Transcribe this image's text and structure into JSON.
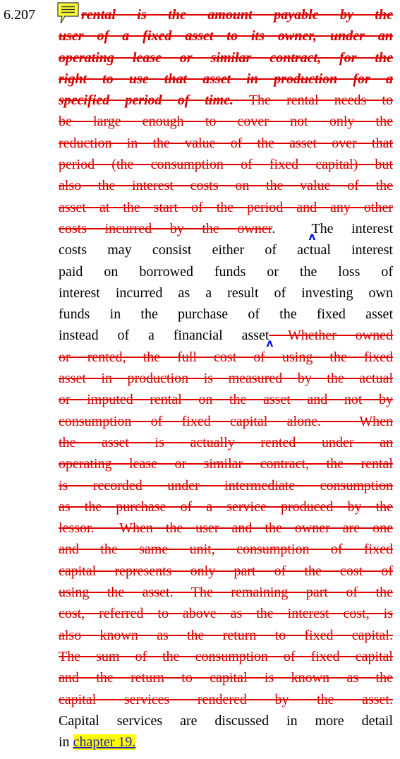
{
  "paragraph": {
    "number": "6.207",
    "lines": [
      {
        "segments": [
          {
            "text": "rental is the amount payable by the",
            "style": "del-bi"
          }
        ]
      },
      {
        "segments": [
          {
            "text": "user of a fixed asset to its owner, under an",
            "style": "del-bi"
          }
        ]
      },
      {
        "segments": [
          {
            "text": "operating lease or similar contract, for the",
            "style": "del-bi"
          }
        ]
      },
      {
        "segments": [
          {
            "text": "right to use that asset in production for a",
            "style": "del-bi"
          }
        ]
      },
      {
        "segments": [
          {
            "text": "specified period of time.",
            "style": "del-bi"
          },
          {
            "text": " The rental needs to",
            "style": "del"
          }
        ]
      },
      {
        "segments": [
          {
            "text": "be large enough to cover not only the",
            "style": "del"
          }
        ]
      },
      {
        "segments": [
          {
            "text": "reduction in the value of the asset over that",
            "style": "del"
          }
        ]
      },
      {
        "segments": [
          {
            "text": "period (the consumption of fixed capital) but",
            "style": "del"
          }
        ]
      },
      {
        "segments": [
          {
            "text": "also the interest costs on the value of the",
            "style": "del"
          }
        ]
      },
      {
        "segments": [
          {
            "text": "asset at the start of the period and any other",
            "style": "del"
          }
        ]
      },
      {
        "segments": [
          {
            "text": "costs incurred by the owner",
            "style": "del"
          },
          {
            "text": ".  ",
            "style": "normal",
            "caret_after": true
          },
          {
            "text": "The interest",
            "style": "normal"
          }
        ]
      },
      {
        "segments": [
          {
            "text": "costs may consist either of actual interest",
            "style": "normal"
          }
        ]
      },
      {
        "segments": [
          {
            "text": "paid on borrowed funds or the loss of",
            "style": "normal"
          }
        ]
      },
      {
        "segments": [
          {
            "text": "interest incurred as a result of investing own",
            "style": "normal"
          }
        ]
      },
      {
        "segments": [
          {
            "text": "funds in the purchase of the fixed asset",
            "style": "normal"
          }
        ]
      },
      {
        "segments": [
          {
            "text": "instead of a financial asset",
            "style": "normal",
            "caret_after": true
          },
          {
            "text": " Whether owned",
            "style": "del"
          }
        ]
      },
      {
        "segments": [
          {
            "text": "or rented, the full cost of using the fixed",
            "style": "del"
          }
        ]
      },
      {
        "segments": [
          {
            "text": "asset in production is measured by the actual",
            "style": "del"
          }
        ]
      },
      {
        "segments": [
          {
            "text": "or imputed rental on the asset and not by",
            "style": "del"
          }
        ]
      },
      {
        "segments": [
          {
            "text": "consumption of fixed capital alone.  When",
            "style": "del"
          }
        ]
      },
      {
        "segments": [
          {
            "text": "the asset is actually rented under an",
            "style": "del"
          }
        ]
      },
      {
        "segments": [
          {
            "text": "operating lease or similar contract, the rental",
            "style": "del"
          }
        ]
      },
      {
        "segments": [
          {
            "text": "is recorded under intermediate consumption",
            "style": "del"
          }
        ]
      },
      {
        "segments": [
          {
            "text": "as the purchase of a service produced by the",
            "style": "del"
          }
        ]
      },
      {
        "segments": [
          {
            "text": "lessor.  When the user and the owner are one",
            "style": "del"
          }
        ]
      },
      {
        "segments": [
          {
            "text": "and the same unit, consumption of fixed",
            "style": "del"
          }
        ]
      },
      {
        "segments": [
          {
            "text": "capital represents only part of the cost of",
            "style": "del"
          }
        ]
      },
      {
        "segments": [
          {
            "text": "using the asset. The remaining part of the",
            "style": "del"
          }
        ]
      },
      {
        "segments": [
          {
            "text": "cost, referred to above as the interest cost, is",
            "style": "del"
          }
        ]
      },
      {
        "segments": [
          {
            "text": "also known as the return to fixed capital.",
            "style": "del"
          }
        ]
      },
      {
        "segments": [
          {
            "text": "The sum of the consumption of fixed capital",
            "style": "del"
          }
        ]
      },
      {
        "segments": [
          {
            "text": "and the return to capital is known as the",
            "style": "del"
          }
        ]
      },
      {
        "segments": [
          {
            "text": "capital services rendered by the asset.",
            "style": "del"
          }
        ]
      },
      {
        "segments": [
          {
            "text": "Capital services are discussed in more detail",
            "style": "normal"
          }
        ]
      },
      {
        "segments": [
          {
            "text": "in ",
            "style": "normal"
          },
          {
            "text": "chapter 19.",
            "style": "highlight"
          }
        ],
        "last": true
      }
    ]
  }
}
